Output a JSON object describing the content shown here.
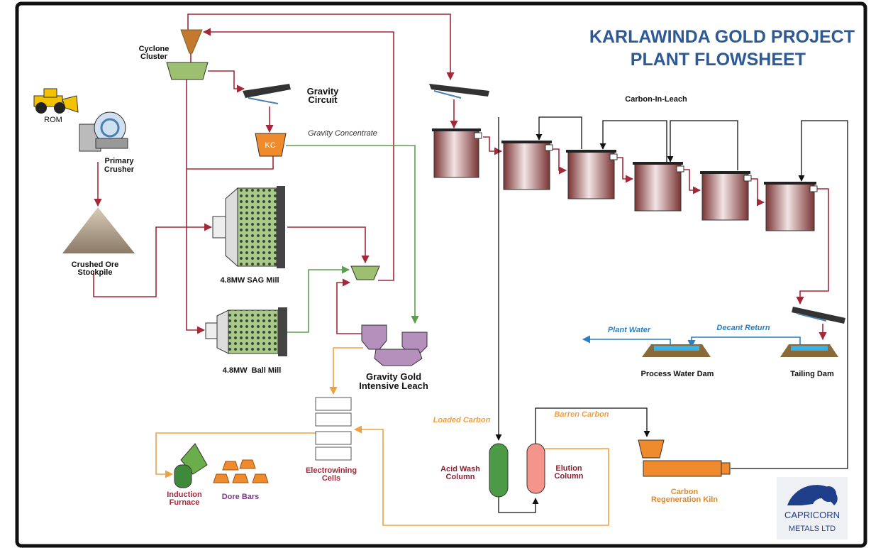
{
  "header": {
    "title": [
      "KARLAWINDA GOLD PROJECT",
      "PLANT FLOWSHEET"
    ]
  },
  "labels": {
    "rom": [
      "ROM"
    ],
    "primary_crusher": [
      "Primary",
      "Crusher"
    ],
    "stockpile": [
      "Crushed Ore",
      "Stockpile"
    ],
    "cyclone": [
      "Cyclone",
      "Cluster"
    ],
    "gravity_circuit": [
      "Gravity",
      "Circuit"
    ],
    "kc": [
      "KC"
    ],
    "gravity_concentrate": [
      "Gravity Concentrate"
    ],
    "sag_mill": [
      "4.8MW SAG Mill"
    ],
    "ball_mill": [
      "4.8MW  Ball Mill"
    ],
    "intensive_leach": [
      "Gravity Gold",
      "Intensive Leach"
    ],
    "cil": [
      "Carbon-In-Leach"
    ],
    "plant_water": [
      "Plant Water"
    ],
    "decant_return": [
      "Decant Return"
    ],
    "process_water_dam": [
      "Process Water Dam"
    ],
    "tailing_dam": [
      "Tailing Dam"
    ],
    "loaded_carbon": [
      "Loaded Carbon"
    ],
    "barren_carbon": [
      "Barren Carbon"
    ],
    "acid_wash": [
      "Acid Wash",
      "Column"
    ],
    "elution": [
      "Elution",
      "Column"
    ],
    "kiln": [
      "Carbon",
      "Regeneration Kiln"
    ],
    "electrowinning": [
      "Electrowining",
      "Cells"
    ],
    "furnace": [
      "Induction",
      "Furnace"
    ],
    "dore_bars": [
      "Dore Bars"
    ]
  },
  "logo": [
    "CAPRICORN",
    "METALS LTD"
  ]
}
